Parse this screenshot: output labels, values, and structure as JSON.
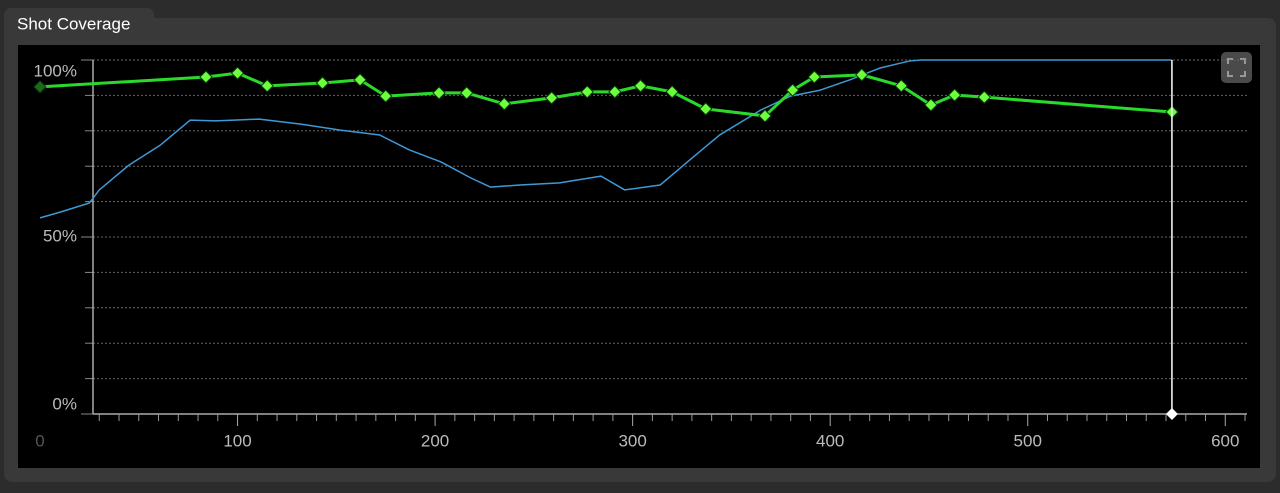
{
  "chart_data": {
    "type": "line",
    "title": "Shot Coverage",
    "xlim": [
      0,
      611
    ],
    "xticks": [
      0,
      100,
      200,
      300,
      400,
      500,
      600
    ],
    "xminorticks": [
      30,
      40,
      50,
      60,
      70,
      80,
      90,
      110,
      120,
      130,
      140,
      150,
      160,
      170,
      180,
      190,
      210,
      220,
      230,
      240,
      250,
      260,
      270,
      280,
      290,
      310,
      320,
      330,
      340,
      350,
      360,
      370,
      380,
      390,
      410,
      420,
      430,
      440,
      450,
      460,
      470,
      480,
      490,
      510,
      520,
      530,
      540,
      550,
      560,
      570,
      580,
      590,
      610
    ],
    "ylim": [
      0,
      100
    ],
    "yticks": [
      {
        "value": 0,
        "label": "0%"
      },
      {
        "value": 50,
        "label": "50%"
      },
      {
        "value": 100,
        "label": "100%"
      }
    ],
    "yminorticks": [
      10,
      20,
      30,
      40,
      60,
      70,
      80,
      90
    ],
    "grid": true,
    "playhead": 573,
    "series": [
      {
        "color": "#2bd92b",
        "marker_color": "#6cff3c",
        "x": [
          0,
          84,
          100,
          115,
          143,
          162,
          175,
          202,
          216,
          235,
          259,
          277,
          291,
          304,
          320,
          337,
          367,
          381,
          392,
          416,
          436,
          451,
          463,
          478,
          573
        ],
        "values": [
          92.4,
          95.2,
          96.3,
          92.7,
          93.5,
          94.4,
          89.8,
          90.7,
          90.7,
          87.6,
          89.3,
          91,
          91,
          92.7,
          91,
          86.2,
          84.2,
          91.5,
          95.2,
          95.8,
          92.7,
          87.3,
          90.1,
          89.5,
          85.3
        ]
      },
      {
        "color": "#3d9ad6",
        "x": [
          0,
          10,
          25,
          30,
          45,
          61,
          76,
          89,
          111,
          132,
          152,
          172,
          187,
          203,
          218,
          228,
          243,
          263,
          284,
          296,
          314,
          329,
          344,
          365,
          380,
          395,
          410,
          425,
          440,
          446,
          573
        ],
        "values": [
          55.4,
          57,
          59.6,
          63.3,
          70.3,
          76,
          83,
          82.8,
          83.3,
          81.9,
          80.2,
          78.8,
          74.6,
          71.2,
          66.7,
          64.1,
          64.7,
          65.3,
          67.2,
          63.3,
          64.7,
          71.8,
          78.8,
          85.9,
          89.8,
          91.5,
          94.4,
          97.7,
          99.7,
          100,
          100
        ]
      }
    ]
  }
}
